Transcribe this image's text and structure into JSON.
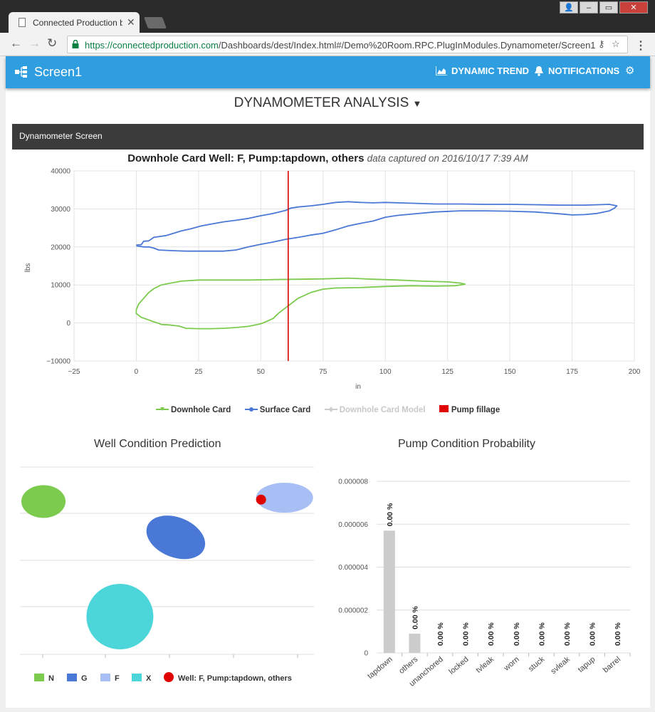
{
  "browser": {
    "tab_title": "Connected Production b",
    "url_host": "https://connectedproduction.com",
    "url_path": "/Dashboards/dest/Index.html#/Demo%20Room.RPC.PlugInModules.Dynamometer/Screen1"
  },
  "appbar": {
    "screen_name": "Screen1",
    "dynamic_trend": "DYNAMIC TREND",
    "notifications": "NOTIFICATIONS"
  },
  "page": {
    "title": "DYNAMOMETER ANALYSIS",
    "panel_title": "Dynamometer Screen"
  },
  "card_chart": {
    "title": "Downhole Card  Well: F, Pump:tapdown, others",
    "captured": "data captured on 2016/10/17 7:39 AM",
    "xlabel": "in",
    "ylabel": "lbs",
    "x_ticks": [
      "−25",
      "0",
      "25",
      "50",
      "75",
      "100",
      "125",
      "150",
      "175",
      "200"
    ],
    "y_ticks": [
      "40000",
      "30000",
      "20000",
      "10000",
      "0",
      "−10000"
    ],
    "legend": [
      "Downhole Card",
      "Surface Card",
      "Downhole Card Model",
      "Pump fillage"
    ]
  },
  "well_chart": {
    "title": "Well Condition Prediction",
    "legend": [
      "N",
      "G",
      "F",
      "X",
      "Well: F, Pump:tapdown, others"
    ]
  },
  "pump_chart": {
    "title": "Pump Condition Probability",
    "y_ticks": [
      "0.000008",
      "0.000006",
      "0.000004",
      "0.000002",
      "0"
    ],
    "bar_label": "0.00 %"
  },
  "chart_data": [
    {
      "type": "line",
      "title": "Downhole Card  Well: F, Pump:tapdown, others",
      "xlabel": "in",
      "ylabel": "lbs",
      "xlim": [
        -25,
        200
      ],
      "ylim": [
        -10000,
        40000
      ],
      "grid": true,
      "legend_position": "bottom",
      "colors": {
        "downhole": "#7ccb4e",
        "surface": "#4a78d6",
        "model": "#cccccc",
        "fillage": "#e00000"
      },
      "series": [
        {
          "name": "Surface Card",
          "points": [
            [
              0,
              20500
            ],
            [
              2,
              20600
            ],
            [
              3,
              21500
            ],
            [
              5,
              21600
            ],
            [
              7,
              22500
            ],
            [
              9,
              22700
            ],
            [
              12,
              23000
            ],
            [
              15,
              23600
            ],
            [
              18,
              24200
            ],
            [
              22,
              24800
            ],
            [
              26,
              25500
            ],
            [
              30,
              26000
            ],
            [
              35,
              26600
            ],
            [
              40,
              27000
            ],
            [
              45,
              27500
            ],
            [
              50,
              28200
            ],
            [
              55,
              28800
            ],
            [
              60,
              29600
            ],
            [
              62,
              30200
            ],
            [
              65,
              30500
            ],
            [
              70,
              30800
            ],
            [
              75,
              31200
            ],
            [
              80,
              31700
            ],
            [
              85,
              31900
            ],
            [
              90,
              31700
            ],
            [
              95,
              31600
            ],
            [
              100,
              31700
            ],
            [
              110,
              31500
            ],
            [
              120,
              31300
            ],
            [
              130,
              31300
            ],
            [
              140,
              31200
            ],
            [
              150,
              31200
            ],
            [
              160,
              31100
            ],
            [
              170,
              31000
            ],
            [
              180,
              31000
            ],
            [
              190,
              31200
            ],
            [
              193,
              30800
            ],
            [
              192,
              30200
            ],
            [
              190,
              29500
            ],
            [
              185,
              28800
            ],
            [
              180,
              28500
            ],
            [
              175,
              28400
            ],
            [
              170,
              28700
            ],
            [
              160,
              29200
            ],
            [
              150,
              29400
            ],
            [
              140,
              29500
            ],
            [
              130,
              29500
            ],
            [
              120,
              29200
            ],
            [
              110,
              28600
            ],
            [
              105,
              28300
            ],
            [
              100,
              27800
            ],
            [
              95,
              26800
            ],
            [
              90,
              26200
            ],
            [
              85,
              25500
            ],
            [
              80,
              24500
            ],
            [
              75,
              23600
            ],
            [
              70,
              23100
            ],
            [
              65,
              22500
            ],
            [
              60,
              22000
            ],
            [
              55,
              21300
            ],
            [
              50,
              20700
            ],
            [
              45,
              20000
            ],
            [
              40,
              19200
            ],
            [
              35,
              18900
            ],
            [
              30,
              18900
            ],
            [
              25,
              18900
            ],
            [
              20,
              18900
            ],
            [
              15,
              19000
            ],
            [
              12,
              19100
            ],
            [
              9,
              19200
            ],
            [
              7,
              19700
            ],
            [
              5,
              20000
            ],
            [
              3,
              20000
            ],
            [
              0,
              20300
            ]
          ]
        },
        {
          "name": "Downhole Card",
          "points": [
            [
              0,
              3500
            ],
            [
              1,
              5000
            ],
            [
              3,
              6500
            ],
            [
              5,
              8000
            ],
            [
              7,
              9000
            ],
            [
              10,
              10000
            ],
            [
              14,
              10500
            ],
            [
              18,
              11000
            ],
            [
              25,
              11300
            ],
            [
              35,
              11300
            ],
            [
              45,
              11300
            ],
            [
              55,
              11400
            ],
            [
              65,
              11500
            ],
            [
              75,
              11600
            ],
            [
              85,
              11800
            ],
            [
              95,
              11500
            ],
            [
              105,
              11300
            ],
            [
              115,
              11000
            ],
            [
              125,
              10800
            ],
            [
              130,
              10500
            ],
            [
              132,
              10200
            ],
            [
              128,
              9800
            ],
            [
              120,
              9700
            ],
            [
              110,
              9800
            ],
            [
              100,
              9600
            ],
            [
              90,
              9300
            ],
            [
              80,
              9200
            ],
            [
              75,
              8900
            ],
            [
              70,
              8000
            ],
            [
              65,
              6500
            ],
            [
              60,
              4000
            ],
            [
              57,
              2500
            ],
            [
              55,
              1200
            ],
            [
              52,
              300
            ],
            [
              50,
              -200
            ],
            [
              45,
              -900
            ],
            [
              40,
              -1200
            ],
            [
              35,
              -1400
            ],
            [
              30,
              -1500
            ],
            [
              25,
              -1500
            ],
            [
              20,
              -1400
            ],
            [
              17,
              -800
            ],
            [
              13,
              -500
            ],
            [
              10,
              -400
            ],
            [
              9,
              -100
            ],
            [
              7,
              300
            ],
            [
              5,
              800
            ],
            [
              2,
              1500
            ],
            [
              0,
              2500
            ],
            [
              0,
              3500
            ]
          ]
        },
        {
          "name": "Pump fillage",
          "points": [
            [
              61,
              -10000
            ],
            [
              61,
              40000
            ]
          ]
        }
      ]
    },
    {
      "type": "bubble",
      "title": "Well Condition Prediction",
      "colors": {
        "N": "#7ccb4e",
        "G": "#4a78d6",
        "F": "#a8bff5",
        "X": "#4dd6d9",
        "well": "#e00000"
      },
      "series": [
        {
          "name": "N",
          "cx": 0.08,
          "cy": 0.81
        },
        {
          "name": "G",
          "cx": 0.53,
          "cy": 0.62
        },
        {
          "name": "F",
          "cx": 0.9,
          "cy": 0.83
        },
        {
          "name": "X",
          "cx": 0.34,
          "cy": 0.2
        },
        {
          "name": "Well: F, Pump:tapdown, others",
          "cx": 0.82,
          "cy": 0.82
        }
      ]
    },
    {
      "type": "bar",
      "title": "Pump Condition Probability",
      "categories": [
        "tapdown",
        "others",
        "unanchored",
        "locked",
        "tvleak",
        "worn",
        "stuck",
        "svleak",
        "tapup",
        "barrel"
      ],
      "values": [
        5.7e-06,
        9e-07,
        0,
        0,
        0,
        0,
        0,
        0,
        0,
        0
      ],
      "data_labels": [
        "0.00 %",
        "0.00 %",
        "0.00 %",
        "0.00 %",
        "0.00 %",
        "0.00 %",
        "0.00 %",
        "0.00 %",
        "0.00 %",
        "0.00 %"
      ],
      "ylim": [
        0,
        8e-06
      ],
      "color": "#cccccc"
    }
  ]
}
